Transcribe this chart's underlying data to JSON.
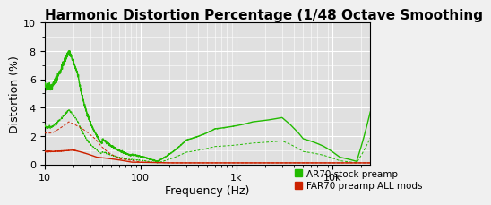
{
  "title": "Harmonic Distortion Percentage (1/48 Octave Smoothing",
  "xlabel": "Frequency (Hz)",
  "ylabel": "Distortion (%)",
  "xlim": [
    10,
    25000
  ],
  "ylim": [
    0,
    10
  ],
  "yticks": [
    0,
    2,
    4,
    6,
    8,
    10
  ],
  "background_color": "#f0f0f0",
  "plot_bg_color": "#e0e0e0",
  "grid_color": "#ffffff",
  "green": "#22bb00",
  "red": "#cc2200",
  "legend": [
    {
      "label": "AR70 stock preamp",
      "color": "#22bb00"
    },
    {
      "label": "FAR70 preamp ALL mods",
      "color": "#cc2200"
    }
  ],
  "title_fontsize": 11,
  "axis_label_fontsize": 9,
  "tick_fontsize": 8,
  "legend_fontsize": 7.5
}
